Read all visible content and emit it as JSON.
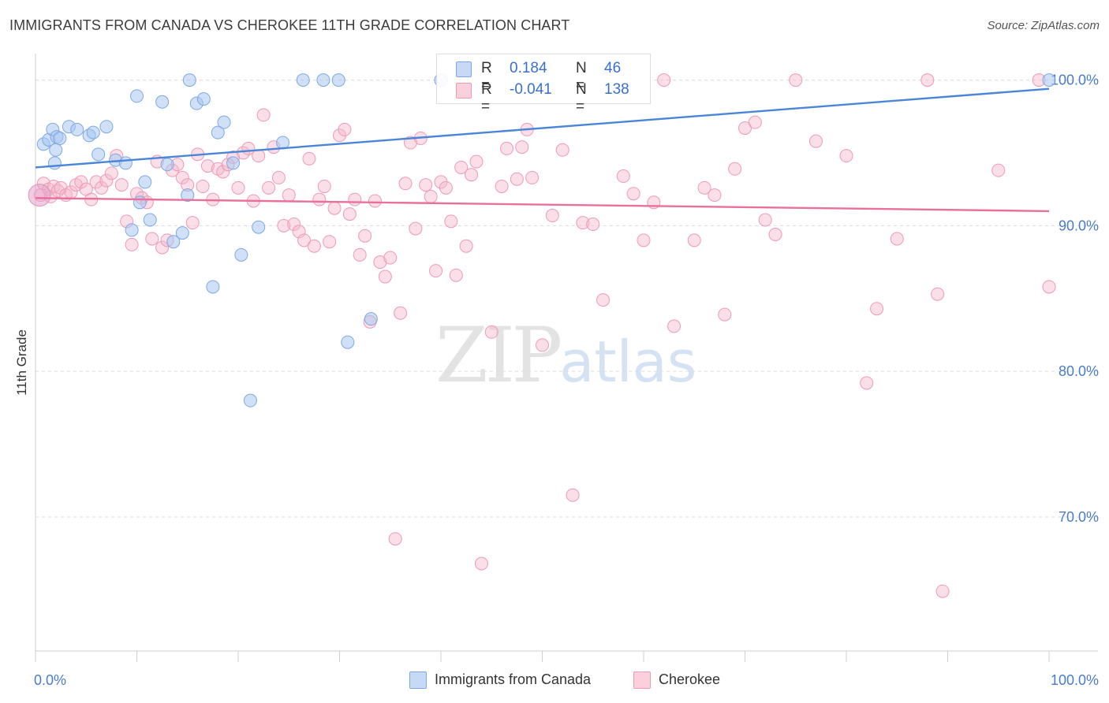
{
  "title": "IMMIGRANTS FROM CANADA VS CHEROKEE 11TH GRADE CORRELATION CHART",
  "source": "Source: ZipAtlas.com",
  "watermark": {
    "zip": "ZIP",
    "atlas": "atlas"
  },
  "legend_top": [
    {
      "r_label": "R =",
      "r_value": "0.184",
      "n_label": "N =",
      "n_value": "46",
      "color": "#a8c6f0"
    },
    {
      "r_label": "R =",
      "r_value": "-0.041",
      "n_label": "N =",
      "n_value": "138",
      "color": "#f5b8cb"
    }
  ],
  "legend_bottom": [
    {
      "label": "Immigrants from Canada",
      "color": "#a8c6f0"
    },
    {
      "label": "Cherokee",
      "color": "#f5b8cb"
    }
  ],
  "chart_data": {
    "type": "scatter",
    "title": "IMMIGRANTS FROM CANADA VS CHEROKEE 11TH GRADE CORRELATION CHART",
    "xlabel": "",
    "ylabel": "11th Grade",
    "xlim": [
      0,
      100
    ],
    "ylim": [
      60.8,
      101.6
    ],
    "x_tick_labels": [
      "0.0%",
      "100.0%"
    ],
    "y_ticks": [
      70,
      80,
      90,
      100
    ],
    "y_tick_labels": [
      "70.0%",
      "80.0%",
      "90.0%",
      "100.0%"
    ],
    "grid": true,
    "colors": {
      "canada": "#4a86d8",
      "canada_fill": "#a8c6f0",
      "cherokee": "#e8709a",
      "cherokee_fill": "#f5b8cb",
      "axis_text": "#4a7cc9"
    },
    "series": [
      {
        "name": "Immigrants from Canada",
        "trend": {
          "x": [
            0,
            100
          ],
          "y": [
            94.0,
            99.4
          ]
        },
        "points": [
          [
            0.8,
            95.6
          ],
          [
            1.3,
            95.9
          ],
          [
            1.7,
            96.6
          ],
          [
            1.9,
            94.3
          ],
          [
            2.0,
            95.2
          ],
          [
            2.1,
            96.1
          ],
          [
            2.4,
            96.0
          ],
          [
            3.3,
            96.8
          ],
          [
            4.1,
            96.6
          ],
          [
            5.3,
            96.2
          ],
          [
            5.7,
            96.4
          ],
          [
            6.2,
            94.9
          ],
          [
            7.0,
            96.8
          ],
          [
            7.9,
            94.5
          ],
          [
            8.9,
            94.3
          ],
          [
            9.5,
            89.7
          ],
          [
            10.0,
            98.9
          ],
          [
            10.3,
            91.6
          ],
          [
            10.8,
            93.0
          ],
          [
            11.3,
            90.4
          ],
          [
            12.5,
            98.5
          ],
          [
            13.0,
            94.2
          ],
          [
            13.6,
            88.9
          ],
          [
            14.5,
            89.5
          ],
          [
            15.0,
            92.1
          ],
          [
            15.2,
            100.0
          ],
          [
            15.9,
            98.4
          ],
          [
            16.6,
            98.7
          ],
          [
            17.5,
            85.8
          ],
          [
            18.0,
            96.4
          ],
          [
            18.6,
            97.1
          ],
          [
            19.5,
            94.3
          ],
          [
            20.3,
            88.0
          ],
          [
            21.2,
            78.0
          ],
          [
            22.0,
            89.9
          ],
          [
            24.4,
            95.7
          ],
          [
            26.4,
            100.0
          ],
          [
            28.4,
            100.0
          ],
          [
            29.9,
            100.0
          ],
          [
            30.8,
            82.0
          ],
          [
            33.1,
            83.6
          ],
          [
            40.0,
            100.0
          ],
          [
            100.0,
            100.0
          ]
        ]
      },
      {
        "name": "Cherokee",
        "trend": {
          "x": [
            0,
            100
          ],
          "y": [
            91.9,
            91.0
          ]
        },
        "points": [
          [
            0.5,
            92.1
          ],
          [
            0.8,
            92.9
          ],
          [
            1.3,
            92.5
          ],
          [
            1.5,
            92.0
          ],
          [
            1.8,
            92.7
          ],
          [
            2.2,
            92.4
          ],
          [
            2.5,
            92.6
          ],
          [
            3.0,
            92.1
          ],
          [
            3.5,
            92.3
          ],
          [
            4.0,
            92.8
          ],
          [
            4.5,
            93.0
          ],
          [
            5.0,
            92.5
          ],
          [
            5.5,
            91.8
          ],
          [
            6.0,
            93.0
          ],
          [
            6.5,
            92.6
          ],
          [
            7.0,
            93.1
          ],
          [
            7.5,
            93.6
          ],
          [
            8.0,
            94.8
          ],
          [
            8.5,
            92.8
          ],
          [
            9.0,
            90.3
          ],
          [
            9.5,
            88.7
          ],
          [
            10.0,
            92.2
          ],
          [
            10.5,
            91.9
          ],
          [
            11.0,
            91.6
          ],
          [
            11.5,
            89.1
          ],
          [
            12.0,
            94.4
          ],
          [
            12.5,
            88.5
          ],
          [
            13.0,
            89.0
          ],
          [
            13.5,
            93.8
          ],
          [
            14.0,
            94.2
          ],
          [
            14.5,
            93.3
          ],
          [
            15.0,
            92.8
          ],
          [
            15.5,
            90.2
          ],
          [
            16.0,
            94.9
          ],
          [
            16.5,
            92.7
          ],
          [
            17.0,
            94.1
          ],
          [
            17.5,
            91.8
          ],
          [
            18.0,
            93.9
          ],
          [
            18.5,
            93.7
          ],
          [
            19.0,
            94.2
          ],
          [
            19.5,
            94.7
          ],
          [
            20.0,
            92.6
          ],
          [
            20.5,
            95.0
          ],
          [
            21.0,
            95.3
          ],
          [
            21.5,
            91.7
          ],
          [
            22.0,
            94.8
          ],
          [
            22.5,
            97.6
          ],
          [
            23.0,
            92.6
          ],
          [
            23.5,
            95.4
          ],
          [
            24.0,
            93.3
          ],
          [
            24.5,
            90.0
          ],
          [
            25.0,
            92.1
          ],
          [
            25.5,
            90.1
          ],
          [
            26.0,
            89.6
          ],
          [
            26.5,
            89.0
          ],
          [
            27.0,
            94.6
          ],
          [
            27.5,
            88.6
          ],
          [
            28.0,
            91.8
          ],
          [
            28.5,
            92.7
          ],
          [
            29.0,
            88.9
          ],
          [
            29.5,
            91.2
          ],
          [
            30.0,
            96.2
          ],
          [
            30.5,
            96.6
          ],
          [
            31.0,
            90.8
          ],
          [
            31.5,
            91.8
          ],
          [
            32.0,
            88.0
          ],
          [
            32.5,
            89.3
          ],
          [
            33.0,
            83.4
          ],
          [
            33.5,
            91.7
          ],
          [
            34.0,
            87.5
          ],
          [
            34.5,
            86.5
          ],
          [
            35.0,
            87.8
          ],
          [
            35.5,
            68.5
          ],
          [
            36.0,
            84.0
          ],
          [
            36.5,
            92.9
          ],
          [
            37.0,
            95.7
          ],
          [
            37.5,
            89.8
          ],
          [
            38.0,
            96.0
          ],
          [
            38.5,
            92.8
          ],
          [
            39.0,
            92.0
          ],
          [
            39.5,
            86.9
          ],
          [
            40.0,
            93.0
          ],
          [
            40.5,
            92.6
          ],
          [
            41.0,
            90.3
          ],
          [
            41.5,
            86.6
          ],
          [
            42.0,
            94.0
          ],
          [
            42.5,
            88.6
          ],
          [
            43.0,
            93.5
          ],
          [
            43.5,
            94.4
          ],
          [
            44.0,
            66.8
          ],
          [
            45.0,
            82.7
          ],
          [
            46.0,
            92.7
          ],
          [
            46.5,
            95.3
          ],
          [
            47.5,
            93.2
          ],
          [
            48.0,
            95.4
          ],
          [
            48.5,
            96.6
          ],
          [
            49.0,
            93.3
          ],
          [
            50.0,
            81.8
          ],
          [
            51.0,
            90.7
          ],
          [
            52.0,
            95.2
          ],
          [
            53.0,
            71.5
          ],
          [
            54.0,
            90.2
          ],
          [
            55.0,
            90.1
          ],
          [
            56.0,
            84.9
          ],
          [
            58.0,
            93.4
          ],
          [
            59.0,
            92.2
          ],
          [
            60.0,
            89.0
          ],
          [
            61.0,
            91.6
          ],
          [
            62.0,
            100.0
          ],
          [
            63.0,
            83.1
          ],
          [
            65.0,
            89.0
          ],
          [
            66.0,
            92.6
          ],
          [
            67.0,
            92.1
          ],
          [
            68.0,
            83.9
          ],
          [
            69.0,
            93.9
          ],
          [
            70.0,
            96.7
          ],
          [
            71.0,
            97.1
          ],
          [
            72.0,
            90.4
          ],
          [
            73.0,
            89.4
          ],
          [
            75.0,
            100.0
          ],
          [
            77.0,
            95.8
          ],
          [
            80.0,
            94.8
          ],
          [
            82.0,
            79.2
          ],
          [
            83.0,
            84.3
          ],
          [
            85.0,
            89.1
          ],
          [
            88.0,
            100.0
          ],
          [
            89.0,
            85.3
          ],
          [
            89.5,
            64.9
          ],
          [
            95.0,
            93.8
          ],
          [
            99.0,
            100.0
          ],
          [
            100.0,
            85.8
          ]
        ]
      }
    ]
  }
}
